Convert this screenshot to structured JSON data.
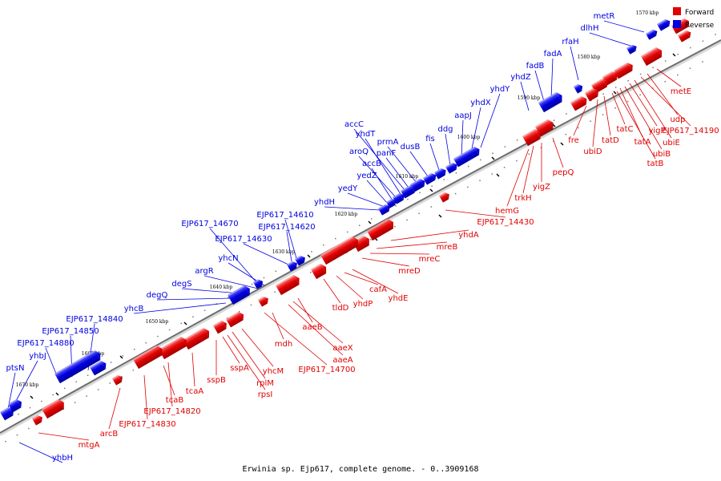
{
  "caption": "Erwinia sp. Ejp617, complete genome. - 0..3909168",
  "legend": {
    "forward_label": "Forward",
    "reverse_label": "Reverse",
    "forward_color": "#e00000",
    "reverse_color": "#0000e0"
  },
  "ticks": [
    "1570 kbp",
    "1580 kbp",
    "1590 kbp",
    "1600 kbp",
    "1610 kbp",
    "1620 kbp",
    "1630 kbp",
    "1640 kbp",
    "1650 kbp",
    "1660 kbp",
    "1670 kbp"
  ],
  "reverse_genes": [
    "metR",
    "dlhH",
    "rfaH",
    "fadA",
    "fadB",
    "yhdZ",
    "yhdY",
    "yhdX",
    "aapJ",
    "ddg",
    "fis",
    "dusB",
    "prmA",
    "panF",
    "accC",
    "yhdT",
    "aroQ",
    "accB",
    "yedZ",
    "yedY",
    "yhdH",
    "EJP617_14610",
    "EJP617_14620",
    "EJP617_14630",
    "EJP617_14670",
    "yhcN",
    "argR",
    "degS",
    "degQ",
    "yhcB",
    "EJP617_14840",
    "EJP617_14850",
    "EJP617_14880",
    "yhbJ",
    "ptsN",
    "yhbH"
  ],
  "forward_genes": [
    "metE",
    "udp",
    "EJP617_14190",
    "ubiE",
    "yigP",
    "ubiB",
    "tatA",
    "tatB",
    "tatC",
    "tatD",
    "ubiD",
    "fre",
    "pepQ",
    "yigZ",
    "trkH",
    "hemG",
    "EJP617_14430",
    "yhdA",
    "mreB",
    "mreC",
    "mreD",
    "yhdE",
    "cafA",
    "yhdP",
    "tldD",
    "aaeB",
    "aaeX",
    "aaeA",
    "EJP617_14700",
    "mdh",
    "yhcM",
    "rplM",
    "rpsI",
    "sspA",
    "sspB",
    "tcaA",
    "EJP617_14820",
    "tcaB",
    "EJP617_14830",
    "arcB",
    "mtgA"
  ]
}
